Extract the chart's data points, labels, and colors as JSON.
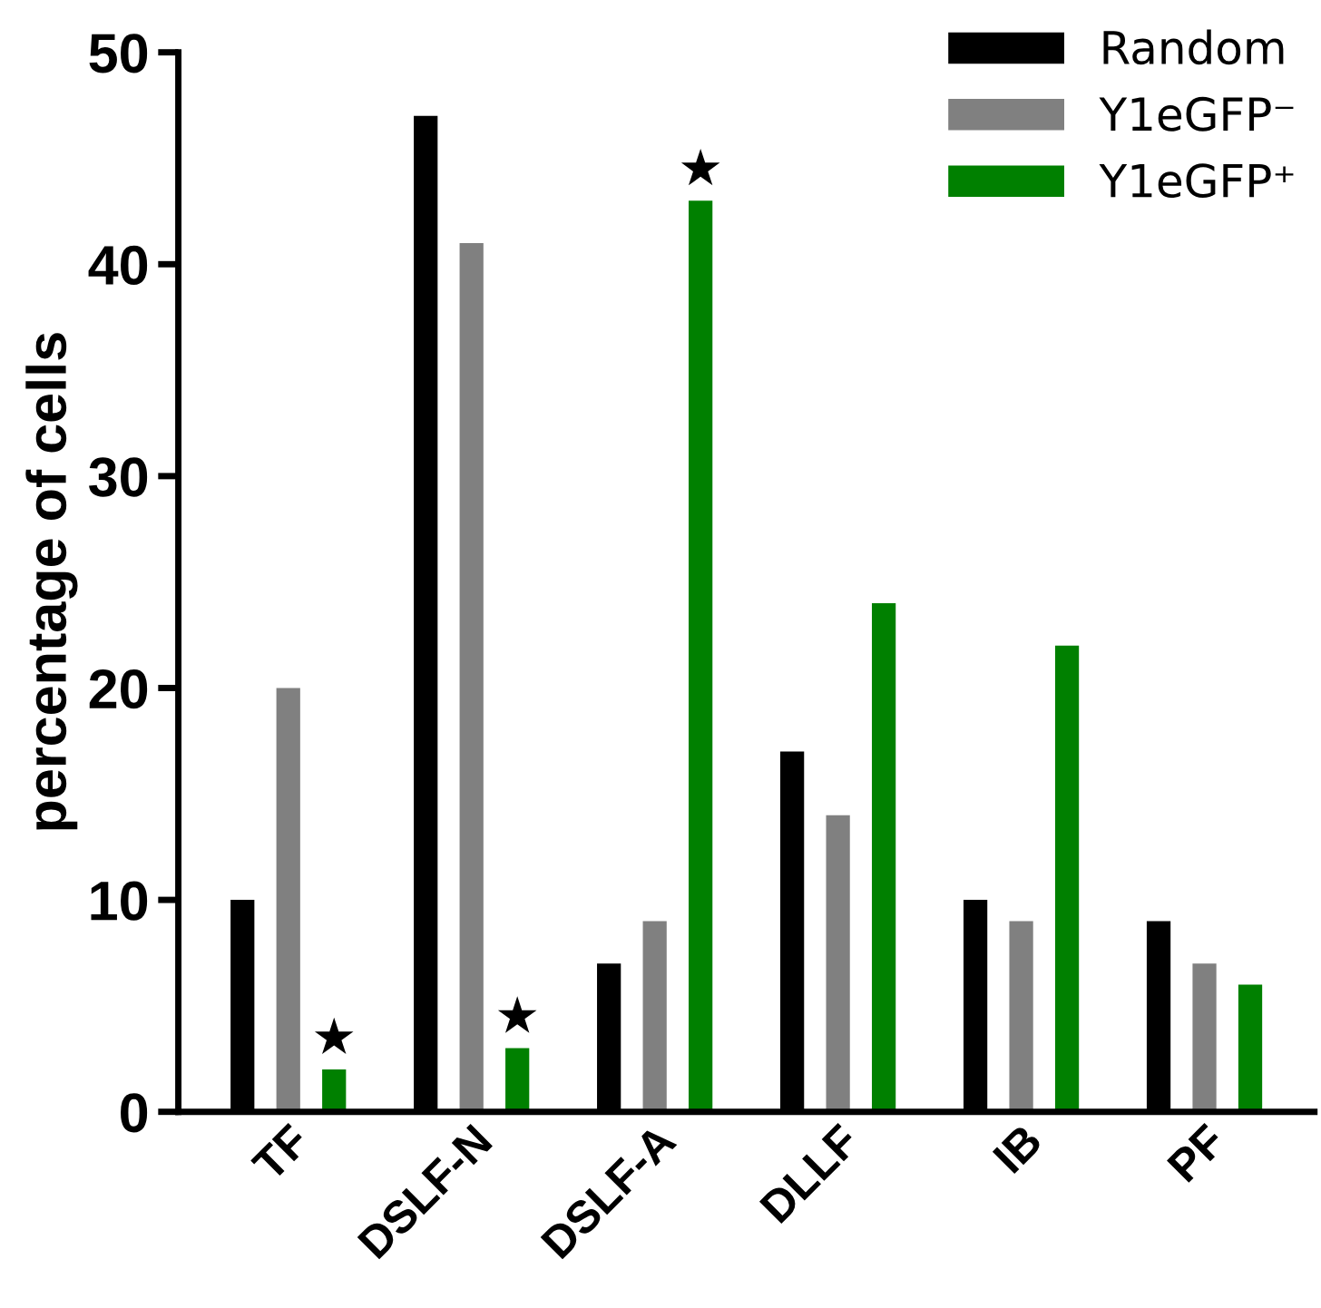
{
  "chart_data": {
    "type": "bar",
    "ylabel": "percentage of cells",
    "categories": [
      "TF",
      "DSLF-N",
      "DSLF-A",
      "DLLF",
      "IB",
      "PF"
    ],
    "series": [
      {
        "name": "Random",
        "color": "#000000",
        "values": [
          10,
          47,
          7,
          17,
          10,
          9
        ]
      },
      {
        "name": "Y1eGFP⁻",
        "color": "#808080",
        "values": [
          20,
          41,
          9,
          14,
          9,
          7
        ]
      },
      {
        "name": "Y1eGFP⁺",
        "color": "#008000",
        "values": [
          2,
          3,
          43,
          24,
          22,
          6
        ],
        "value_labels": [
          "★",
          "★",
          "★",
          null,
          null,
          null
        ]
      }
    ],
    "ylim": [
      0,
      50
    ],
    "yticks": [
      0,
      10,
      20,
      30,
      40,
      50
    ],
    "grid": false,
    "legend": "top right"
  }
}
